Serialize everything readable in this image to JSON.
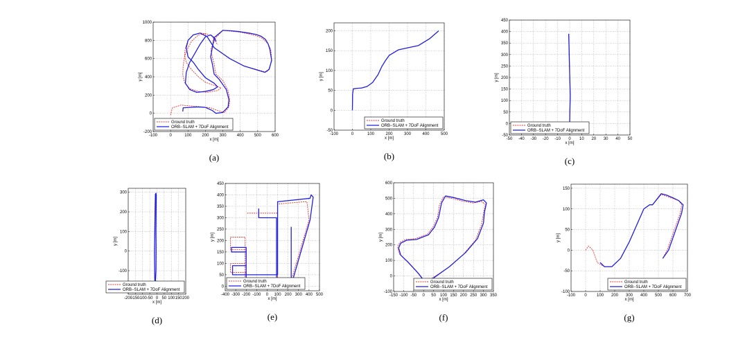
{
  "legend": {
    "ground_truth": "Ground truth",
    "estimate": "ORB−SLAM + 7DoF Alignment"
  },
  "colors": {
    "ground_truth": "#e8352f",
    "estimate": "#1f1fe0",
    "grid": "#9a9a9a"
  },
  "chart_data": [
    {
      "type": "line",
      "caption": "(a)",
      "xlabel": "x [m]",
      "ylabel": "y [m]",
      "xlim": [
        -100,
        600
      ],
      "ylim": [
        -200,
        1000
      ],
      "xticks": [
        -100,
        0,
        100,
        200,
        300,
        400,
        500,
        600
      ],
      "yticks": [
        -200,
        0,
        200,
        400,
        600,
        800,
        1000
      ],
      "grid": true,
      "legend_position": "bottom-left",
      "series": [
        {
          "name": "Ground truth",
          "style": "dashed",
          "x": [
            0,
            10,
            60,
            120,
            180,
            230,
            270,
            310,
            335,
            340,
            330,
            300,
            260,
            250,
            240,
            230,
            260,
            300,
            350,
            400,
            450,
            490,
            520,
            540,
            560,
            575,
            580,
            570,
            550,
            420,
            340,
            250,
            210,
            195,
            170,
            130,
            100,
            85,
            80,
            90,
            120,
            160,
            200,
            260,
            290,
            270,
            210,
            160,
            110,
            80,
            70,
            72,
            80,
            95,
            120,
            160,
            200,
            235,
            255,
            270
          ],
          "y": [
            -20,
            60,
            90,
            80,
            70,
            60,
            30,
            10,
            70,
            140,
            250,
            360,
            430,
            540,
            620,
            700,
            830,
            910,
            900,
            890,
            870,
            850,
            830,
            800,
            760,
            700,
            600,
            500,
            450,
            520,
            600,
            720,
            840,
            875,
            880,
            860,
            800,
            720,
            640,
            560,
            480,
            400,
            340,
            300,
            280,
            250,
            230,
            240,
            270,
            340,
            420,
            520,
            620,
            700,
            790,
            860,
            875,
            850,
            800,
            750
          ]
        },
        {
          "name": "ORB−SLAM + 7DoF Alignment",
          "style": "solid",
          "x": [
            70,
            72,
            110,
            160,
            200,
            240,
            260,
            300,
            330,
            335,
            320,
            280,
            250,
            240,
            230,
            250,
            300,
            350,
            400,
            450,
            490,
            520,
            545,
            560,
            570,
            580,
            565,
            540,
            420,
            340,
            250,
            210,
            170,
            130,
            100,
            90,
            100,
            130,
            160,
            200,
            250,
            270,
            245,
            200,
            150,
            110,
            85,
            90,
            110,
            140,
            170,
            200,
            230,
            250,
            262
          ],
          "y": [
            20,
            60,
            65,
            70,
            65,
            30,
            0,
            10,
            70,
            150,
            260,
            370,
            430,
            540,
            620,
            830,
            910,
            905,
            895,
            880,
            865,
            845,
            810,
            760,
            700,
            580,
            480,
            450,
            520,
            600,
            720,
            840,
            880,
            860,
            800,
            720,
            620,
            560,
            480,
            390,
            330,
            290,
            260,
            240,
            230,
            260,
            330,
            450,
            560,
            660,
            760,
            840,
            860,
            830,
            790
          ]
        }
      ]
    },
    {
      "type": "line",
      "caption": "(b)",
      "xlabel": "x [m]",
      "ylabel": "y [m]",
      "xlim": [
        -100,
        500
      ],
      "ylim": [
        -50,
        220
      ],
      "xticks": [
        -100,
        0,
        100,
        200,
        300,
        400,
        500
      ],
      "yticks": [
        -50,
        0,
        50,
        100,
        150,
        200
      ],
      "grid": true,
      "legend_position": "bottom-right",
      "series": [
        {
          "name": "Ground truth",
          "style": "dashed",
          "x": [
            0,
            1,
            5,
            20,
            50,
            80,
            110,
            140,
            160,
            180,
            200,
            250,
            300,
            360,
            420,
            470
          ],
          "y": [
            0,
            40,
            54,
            55,
            56,
            60,
            70,
            90,
            110,
            125,
            138,
            152,
            157,
            163,
            180,
            200
          ]
        },
        {
          "name": "ORB−SLAM + 7DoF Alignment",
          "style": "solid",
          "x": [
            0,
            1,
            5,
            20,
            50,
            80,
            110,
            140,
            160,
            180,
            200,
            250,
            300,
            360,
            420,
            470
          ],
          "y": [
            0,
            40,
            54,
            55,
            56,
            60,
            70,
            90,
            110,
            125,
            138,
            152,
            157,
            163,
            180,
            200
          ]
        }
      ]
    },
    {
      "type": "line",
      "caption": "(c)",
      "xlabel": "x [m]",
      "ylabel": "y [m]",
      "xlim": [
        -50,
        50
      ],
      "ylim": [
        -50,
        450
      ],
      "xticks": [
        -50,
        -40,
        -30,
        -20,
        -10,
        0,
        10,
        20,
        30,
        40,
        50
      ],
      "yticks": [
        -50,
        0,
        50,
        100,
        150,
        200,
        250,
        300,
        350,
        400,
        450
      ],
      "grid": true,
      "legend_position": "bottom-left",
      "series": [
        {
          "name": "Ground truth",
          "style": "dashed",
          "x": [
            0,
            0.2,
            0.5,
            0.2,
            -0.2,
            -0.5,
            -0.8
          ],
          "y": [
            0,
            60,
            120,
            180,
            260,
            330,
            390
          ]
        },
        {
          "name": "ORB−SLAM + 7DoF Alignment",
          "style": "solid",
          "x": [
            0,
            0.2,
            0.5,
            0.2,
            -0.2,
            -0.5,
            -0.8
          ],
          "y": [
            0,
            60,
            120,
            180,
            260,
            330,
            390
          ]
        }
      ]
    },
    {
      "type": "line",
      "caption": "(d)",
      "xlabel": "x [m]",
      "ylabel": "y [m]",
      "xlim": [
        -200,
        200
      ],
      "ylim": [
        -220,
        320
      ],
      "xticks": [
        -200,
        -150,
        -100,
        -50,
        0,
        50,
        100,
        150,
        200
      ],
      "yticks": [
        -200,
        -100,
        0,
        100,
        200,
        300
      ],
      "grid": true,
      "legend_position": "bottom-right",
      "series": [
        {
          "name": "Ground truth",
          "style": "dashed",
          "x": [
            -15,
            -17,
            -18,
            -16,
            -14,
            -12,
            -8,
            -6,
            -7,
            -8,
            -7,
            -8,
            -12,
            -15
          ],
          "y": [
            -150,
            -100,
            0,
            100,
            200,
            285,
            290,
            280,
            200,
            100,
            0,
            -100,
            -155,
            -150
          ]
        },
        {
          "name": "ORB−SLAM + 7DoF Alignment",
          "style": "solid",
          "x": [
            -15,
            -16,
            -17,
            -15,
            -13,
            -11,
            -7,
            -5,
            -6,
            -7,
            -6,
            -7,
            -11,
            -15
          ],
          "y": [
            -150,
            -100,
            0,
            100,
            200,
            290,
            295,
            285,
            200,
            100,
            0,
            -100,
            -158,
            -150
          ]
        }
      ]
    },
    {
      "type": "line",
      "caption": "(e)",
      "xlabel": "x [m]",
      "ylabel": "y [m]",
      "xlim": [
        -400,
        500
      ],
      "ylim": [
        -20,
        450
      ],
      "xticks": [
        -400,
        -300,
        -200,
        -100,
        0,
        100,
        200,
        300,
        400,
        500
      ],
      "yticks": [
        0,
        50,
        100,
        150,
        200,
        250,
        300,
        350,
        400,
        450
      ],
      "grid": true,
      "legend_position": "bottom-left",
      "series": [
        {
          "name": "Ground truth",
          "style": "dashed",
          "x": [
            -80,
            -80,
            90,
            90,
            -200,
            -200,
            -350,
            -350,
            -200,
            -200,
            -350,
            -350,
            -210,
            -210,
            100,
            100,
            360,
            380,
            400,
            220,
            220,
            100,
            100,
            -200
          ],
          "y": [
            340,
            300,
            300,
            10,
            10,
            60,
            60,
            100,
            100,
            160,
            160,
            215,
            215,
            10,
            10,
            360,
            370,
            370,
            290,
            10,
            0,
            0,
            320,
            320
          ]
        },
        {
          "name": "ORB−SLAM + 7DoF Alignment",
          "style": "solid",
          "x": [
            -80,
            -80,
            90,
            90,
            -200,
            -200,
            -330,
            -330,
            -200,
            -200,
            -340,
            -340,
            -200,
            -200,
            100,
            100,
            410,
            420,
            440,
            410,
            240,
            230,
            230,
            230
          ],
          "y": [
            340,
            300,
            300,
            5,
            5,
            50,
            50,
            90,
            90,
            150,
            150,
            170,
            170,
            50,
            50,
            370,
            385,
            400,
            390,
            290,
            20,
            0,
            10,
            260
          ]
        }
      ]
    },
    {
      "type": "line",
      "caption": "(f)",
      "xlabel": "x [m]",
      "ylabel": "y [m]",
      "xlim": [
        -150,
        350
      ],
      "ylim": [
        -100,
        600
      ],
      "xticks": [
        -150,
        -100,
        -50,
        0,
        50,
        100,
        150,
        200,
        250,
        300,
        350
      ],
      "yticks": [
        -100,
        0,
        100,
        200,
        300,
        400,
        500,
        600
      ],
      "grid": true,
      "legend_position": "bottom-right",
      "series": [
        {
          "name": "Ground truth",
          "style": "dashed",
          "x": [
            10,
            0,
            -30,
            -80,
            -120,
            -130,
            -120,
            -90,
            -40,
            20,
            50,
            70,
            80,
            100,
            140,
            200,
            250,
            290,
            310,
            300,
            290,
            260,
            200,
            120,
            60,
            10
          ],
          "y": [
            -40,
            -30,
            20,
            90,
            140,
            185,
            215,
            235,
            240,
            270,
            320,
            380,
            460,
            510,
            500,
            480,
            470,
            480,
            460,
            400,
            330,
            230,
            140,
            50,
            0,
            -40
          ]
        },
        {
          "name": "ORB−SLAM + 7DoF Alignment",
          "style": "solid",
          "x": [
            15,
            5,
            -25,
            -75,
            -115,
            -125,
            -115,
            -85,
            -35,
            25,
            55,
            75,
            90,
            110,
            150,
            210,
            260,
            300,
            315,
            305,
            300,
            270,
            210,
            130,
            70,
            15
          ],
          "y": [
            -45,
            -35,
            15,
            85,
            135,
            180,
            210,
            230,
            235,
            265,
            315,
            375,
            470,
            515,
            505,
            485,
            475,
            490,
            470,
            410,
            340,
            240,
            150,
            60,
            5,
            -45
          ]
        }
      ]
    },
    {
      "type": "line",
      "caption": "(g)",
      "xlabel": "x [m]",
      "ylabel": "y [m]",
      "xlim": [
        -100,
        700
      ],
      "ylim": [
        -100,
        160
      ],
      "xticks": [
        -100,
        0,
        100,
        200,
        300,
        400,
        500,
        600,
        700
      ],
      "yticks": [
        -100,
        -50,
        0,
        50,
        100,
        150
      ],
      "grid": true,
      "legend_position": "bottom-right",
      "series": [
        {
          "name": "Ground truth",
          "style": "dashed",
          "x": [
            0,
            20,
            50,
            80,
            130,
            180,
            240,
            300,
            350,
            400,
            440,
            460,
            520,
            560,
            600,
            640,
            660,
            650,
            600,
            560,
            530
          ],
          "y": [
            0,
            10,
            0,
            -30,
            -40,
            -40,
            -20,
            20,
            60,
            100,
            110,
            110,
            135,
            130,
            125,
            120,
            110,
            90,
            40,
            0,
            -20
          ]
        },
        {
          "name": "ORB−SLAM + 7DoF Alignment",
          "style": "solid",
          "x": [
            100,
            130,
            180,
            240,
            300,
            350,
            400,
            440,
            460,
            520,
            560,
            600,
            640,
            670,
            660,
            610,
            570,
            530
          ],
          "y": [
            -30,
            -40,
            -40,
            -20,
            20,
            60,
            100,
            110,
            110,
            137,
            133,
            127,
            120,
            110,
            90,
            40,
            0,
            -20
          ]
        }
      ]
    }
  ]
}
